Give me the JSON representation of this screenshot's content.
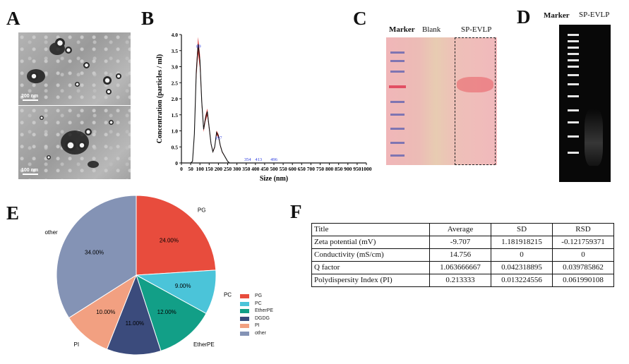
{
  "panels": {
    "a": "A",
    "b": "B",
    "c": "C",
    "d": "D",
    "e": "E",
    "f": "F"
  },
  "tem": {
    "scale_top": "200 nm",
    "scale_bottom": "100 nm"
  },
  "gel_c": {
    "marker_label": "Marker",
    "blank_label": "Blank",
    "sample_label": "SP-EVLP"
  },
  "gel_d": {
    "marker_label": "Marker",
    "sample_label": "SP-EVLP"
  },
  "chart_data": [
    {
      "type": "line",
      "title": "",
      "xlabel": "Size (nm)",
      "ylabel": "Concentration (particles / ml)",
      "xlim": [
        0,
        1000
      ],
      "ylim": [
        0,
        4.0
      ],
      "xticks": [
        0,
        50,
        100,
        150,
        200,
        250,
        300,
        350,
        400,
        450,
        500,
        550,
        600,
        650,
        700,
        750,
        800,
        850,
        900,
        950,
        1000
      ],
      "yticks": [
        "0",
        "0.5",
        "1.0",
        "1.5",
        "2.0",
        "2.5",
        "3.0",
        "3.5",
        "4.0"
      ],
      "x": [
        50,
        60,
        70,
        80,
        90,
        100,
        110,
        120,
        130,
        140,
        150,
        160,
        170,
        180,
        190,
        200,
        210,
        220,
        230,
        240,
        250,
        260,
        270,
        1000
      ],
      "series": [
        {
          "name": "mean",
          "values": [
            0,
            0.05,
            0.9,
            2.8,
            3.7,
            3.2,
            1.9,
            1.05,
            1.4,
            1.6,
            1.1,
            0.6,
            0.35,
            0.5,
            0.95,
            0.85,
            0.55,
            0.35,
            0.25,
            0.15,
            0.05,
            0.0,
            0.0,
            0.0
          ]
        }
      ],
      "annotations": [
        {
          "label": "89",
          "x": 89
        },
        {
          "label": "197",
          "x": 197
        },
        {
          "label": "354",
          "x": 354
        },
        {
          "label": "413",
          "x": 413
        },
        {
          "label": "496",
          "x": 496
        }
      ]
    },
    {
      "type": "pie",
      "title": "",
      "categories": [
        "PG",
        "PC",
        "EtherPE",
        "DGDG",
        "PI",
        "other"
      ],
      "values": [
        24,
        9,
        12,
        11,
        10,
        34
      ],
      "value_labels": [
        "24.00%",
        "9.00%",
        "12.00%",
        "11.00%",
        "10.00%",
        "34.00%"
      ],
      "colors": [
        "#e84c3d",
        "#4bc4d9",
        "#129f87",
        "#3b4b7c",
        "#f2a081",
        "#8493b5"
      ],
      "legend_position": "right"
    },
    {
      "type": "table",
      "headers": [
        "Title",
        "Average",
        "SD",
        "RSD"
      ],
      "rows": [
        [
          "Zeta potential (mV)",
          "-9.707",
          "1.181918215",
          "-0.121759371"
        ],
        [
          "Conductivity (mS/cm)",
          "14.756",
          "0",
          "0"
        ],
        [
          "Q factor",
          "1.063666667",
          "0.042318895",
          "0.039785862"
        ],
        [
          "Polydispersity Index (PI)",
          "0.213333",
          "0.013224556",
          "0.061990108"
        ]
      ]
    }
  ]
}
